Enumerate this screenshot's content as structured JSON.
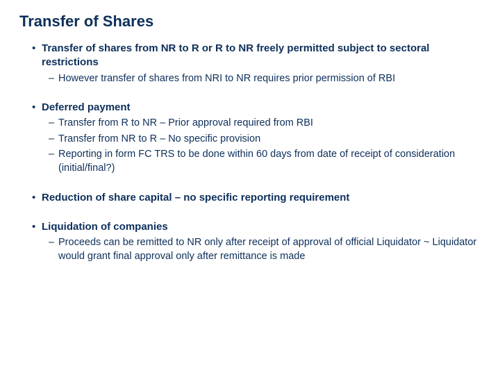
{
  "colors": {
    "text": "#0d2f5a",
    "background": "#ffffff"
  },
  "typography": {
    "title_fontsize": 22,
    "bullet_l1_fontsize": 15,
    "bullet_l2_fontsize": 14.5,
    "font_family": "Arial"
  },
  "title": "Transfer of Shares",
  "sections": [
    {
      "heading": "Transfer of shares from NR to R or R to NR freely permitted subject to sectoral restrictions",
      "items": [
        "However transfer of shares from NRI to NR requires prior permission of RBI"
      ]
    },
    {
      "heading": "Deferred payment",
      "items": [
        "Transfer from R to NR – Prior approval required from RBI",
        "Transfer from NR to R – No specific provision",
        "Reporting in form FC TRS to be done within 60 days from date of receipt of consideration (initial/final?)"
      ]
    },
    {
      "heading": "Reduction of share capital – no specific reporting requirement",
      "items": []
    },
    {
      "heading": "Liquidation of companies",
      "items": [
        "Proceeds can be remitted to NR only after receipt of approval of official Liquidator ~ Liquidator would grant final approval only after remittance is made"
      ]
    }
  ]
}
